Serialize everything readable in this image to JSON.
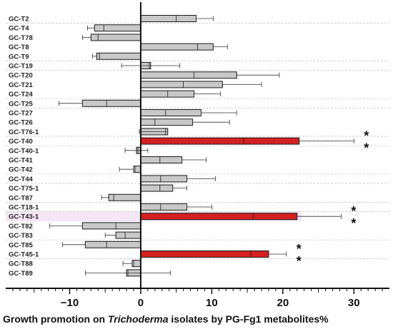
{
  "chart_data": {
    "type": "bar",
    "orientation": "horizontal",
    "xlim": [
      -19,
      35
    ],
    "xticks": [
      -10,
      0,
      10,
      20,
      30
    ],
    "xlabel_parts": [
      "Growth promotion on ",
      "Trichoderma",
      " isolates by PG-Fg1 metabolites%"
    ],
    "significance_marker": "*",
    "colors": {
      "bar_default": "#c8c8c8",
      "bar_highlight": "#d42020",
      "label_highlight": "#d42020",
      "highlight_band": "#f5e6f5",
      "bar_stroke": "#1a1a1a",
      "divider": "#c0c0c0"
    },
    "bars": [
      {
        "label": "GC-T2",
        "value": 7.8,
        "q1": 5.0,
        "err_hi": 10.2,
        "err_lo": 7.8,
        "highlight": false
      },
      {
        "label": "GC-T4",
        "value": -6.5,
        "q1": -5.2,
        "err_hi": -6.5,
        "err_lo": -7.5,
        "highlight": false
      },
      {
        "label": "GC-T78",
        "value": -7.0,
        "q1": -6.0,
        "err_hi": -7.0,
        "err_lo": -8.2,
        "highlight": false
      },
      {
        "label": "GC-T8",
        "value": 10.2,
        "q1": 8.0,
        "err_hi": 12.2,
        "err_lo": 10.2,
        "highlight": false
      },
      {
        "label": "GC-T9",
        "value": -6.2,
        "q1": -5.8,
        "err_hi": -6.2,
        "err_lo": -6.8,
        "highlight": false
      },
      {
        "label": "GC-T19",
        "value": 1.4,
        "q1": 1.2,
        "err_hi": 5.5,
        "err_lo": -2.7,
        "highlight": false
      },
      {
        "label": "GC-T20",
        "value": 13.5,
        "q1": 7.5,
        "err_hi": 19.5,
        "err_lo": 13.5,
        "highlight": false
      },
      {
        "label": "GC-T21",
        "value": 11.5,
        "q1": 6.0,
        "err_hi": 17.0,
        "err_lo": 11.5,
        "highlight": false
      },
      {
        "label": "GC-T24",
        "value": 7.5,
        "q1": 3.8,
        "err_hi": 11.2,
        "err_lo": 7.5,
        "highlight": false
      },
      {
        "label": "GC-T25",
        "value": -8.2,
        "q1": -4.8,
        "err_hi": -8.2,
        "err_lo": -11.5,
        "highlight": false
      },
      {
        "label": "GC-T27",
        "value": 8.5,
        "q1": 3.5,
        "err_hi": 13.5,
        "err_lo": 8.5,
        "highlight": false
      },
      {
        "label": "GC-T26",
        "value": 7.3,
        "q1": 2.0,
        "err_hi": 12.5,
        "err_lo": 7.3,
        "highlight": false
      },
      {
        "label": "GC-T76-1",
        "value": 3.8,
        "q1": 3.5,
        "err_hi": 3.8,
        "err_lo": -0.2,
        "highlight": false
      },
      {
        "label": "GC-T40",
        "value": 22.3,
        "q1": 14.5,
        "err_hi": 30.0,
        "err_lo": 22.3,
        "highlight": true,
        "stars": 2
      },
      {
        "label": "GC-T40-1",
        "value": -0.6,
        "q1": -0.4,
        "err_hi": 1.0,
        "err_lo": -2.2,
        "highlight": false
      },
      {
        "label": "GC-T41",
        "value": 5.8,
        "q1": 2.7,
        "err_hi": 9.2,
        "err_lo": 5.8,
        "highlight": false
      },
      {
        "label": "GC-T42",
        "value": -1.0,
        "q1": -0.8,
        "err_hi": -1.0,
        "err_lo": -3.0,
        "highlight": false
      },
      {
        "label": "GC-T44",
        "value": 6.5,
        "q1": 2.8,
        "err_hi": 10.5,
        "err_lo": 6.5,
        "highlight": false
      },
      {
        "label": "GC-T75-1",
        "value": 4.5,
        "q1": 2.7,
        "err_hi": 6.5,
        "err_lo": 4.5,
        "highlight": false
      },
      {
        "label": "GC-T87",
        "value": -4.5,
        "q1": -3.8,
        "err_hi": -4.5,
        "err_lo": -5.5,
        "highlight": false
      },
      {
        "label": "GC-T18-1",
        "value": 6.5,
        "q1": 2.8,
        "err_hi": 10.0,
        "err_lo": 6.5,
        "highlight": false
      },
      {
        "label": "GC-T43-1",
        "value": 22.0,
        "q1": 15.8,
        "err_hi": 28.2,
        "err_lo": 22.0,
        "highlight": true,
        "stars": 2
      },
      {
        "label": "GC-T82",
        "value": -8.2,
        "q1": -3.5,
        "err_hi": -8.2,
        "err_lo": -12.8,
        "highlight": false
      },
      {
        "label": "GC-T83",
        "value": -3.5,
        "q1": -2.2,
        "err_hi": -3.5,
        "err_lo": -5.0,
        "highlight": false
      },
      {
        "label": "GC-T85",
        "value": -7.8,
        "q1": -4.8,
        "err_hi": -7.8,
        "err_lo": -11.0,
        "highlight": false
      },
      {
        "label": "GC-T45-1",
        "value": 18.0,
        "q1": 15.5,
        "err_hi": 20.5,
        "err_lo": 18.0,
        "highlight": true,
        "stars": 2
      },
      {
        "label": "GC-T88",
        "value": -1.2,
        "q1": -1.0,
        "err_hi": -1.2,
        "err_lo": -2.5,
        "highlight": false
      },
      {
        "label": "GC-T89",
        "value": -2.0,
        "q1": -1.8,
        "err_hi": 4.2,
        "err_lo": -7.8,
        "highlight": false
      }
    ],
    "row_dividers_after": [
      0,
      4,
      5,
      8,
      9,
      12,
      13,
      16,
      17,
      19,
      20,
      23,
      25
    ]
  }
}
